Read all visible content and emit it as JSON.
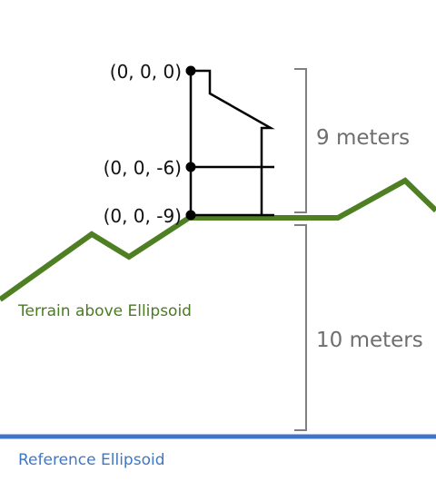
{
  "points": [
    {
      "label": "(0, 0, 0)"
    },
    {
      "label": "(0, 0, -6)"
    },
    {
      "label": "(0, 0, -9)"
    }
  ],
  "dimensions": {
    "upper": "9 meters",
    "lower": "10 meters"
  },
  "terrain": {
    "label": "Terrain above Ellipsoid",
    "color": "#4f7f23"
  },
  "ellipsoid": {
    "label": "Reference Ellipsoid",
    "color": "#3f77c4"
  },
  "bracket_color": "#808080"
}
